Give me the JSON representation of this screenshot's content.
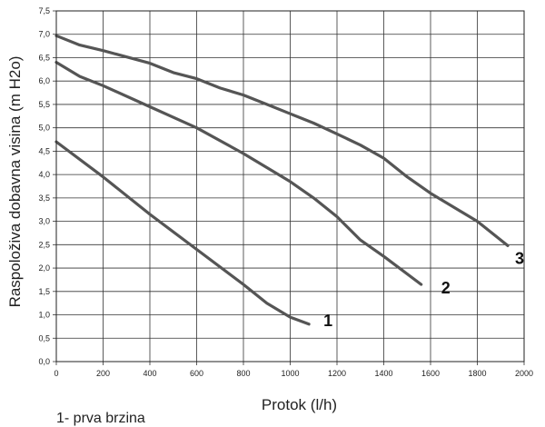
{
  "chart_data": {
    "type": "line",
    "title": "",
    "xlabel": "Protok (l/h)",
    "ylabel": "Raspoloživa dobavna visina (m H2o)",
    "xlim": [
      0,
      2000
    ],
    "ylim": [
      0,
      7.5
    ],
    "x_ticks": [
      "0",
      "200",
      "400",
      "600",
      "800",
      "1000",
      "1200",
      "1400",
      "1600",
      "1800",
      "2000"
    ],
    "y_ticks": [
      "0,0",
      "0,5",
      "1,0",
      "1,5",
      "2,0",
      "2,5",
      "3,0",
      "3,5",
      "4,0",
      "4,5",
      "5,0",
      "5,5",
      "6,0",
      "6,5",
      "7,0",
      "7,5"
    ],
    "grid": true,
    "series": [
      {
        "label": "1",
        "points": [
          [
            0,
            4.7
          ],
          [
            200,
            3.95
          ],
          [
            400,
            3.15
          ],
          [
            600,
            2.4
          ],
          [
            800,
            1.65
          ],
          [
            900,
            1.25
          ],
          [
            1000,
            0.95
          ],
          [
            1080,
            0.8
          ]
        ]
      },
      {
        "label": "2",
        "points": [
          [
            0,
            6.4
          ],
          [
            100,
            6.1
          ],
          [
            200,
            5.9
          ],
          [
            400,
            5.45
          ],
          [
            600,
            5.0
          ],
          [
            800,
            4.45
          ],
          [
            1000,
            3.85
          ],
          [
            1100,
            3.5
          ],
          [
            1200,
            3.1
          ],
          [
            1300,
            2.6
          ],
          [
            1400,
            2.25
          ],
          [
            1560,
            1.65
          ]
        ]
      },
      {
        "label": "3",
        "points": [
          [
            0,
            6.97
          ],
          [
            100,
            6.77
          ],
          [
            200,
            6.65
          ],
          [
            400,
            6.38
          ],
          [
            500,
            6.18
          ],
          [
            600,
            6.05
          ],
          [
            700,
            5.85
          ],
          [
            800,
            5.7
          ],
          [
            900,
            5.5
          ],
          [
            1000,
            5.3
          ],
          [
            1100,
            5.1
          ],
          [
            1200,
            4.87
          ],
          [
            1300,
            4.63
          ],
          [
            1400,
            4.35
          ],
          [
            1500,
            3.95
          ],
          [
            1600,
            3.6
          ],
          [
            1800,
            3.0
          ],
          [
            1930,
            2.48
          ]
        ]
      }
    ]
  },
  "footnote": "1- prva brzina"
}
